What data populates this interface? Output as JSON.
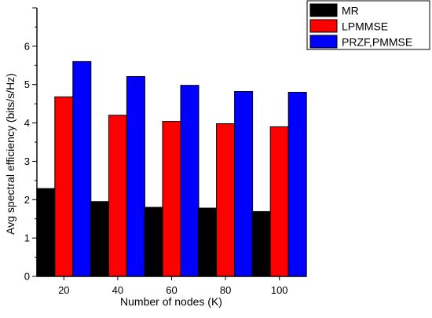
{
  "chart_data": {
    "type": "bar",
    "xlabel": "Number of nodes (K)",
    "ylabel": "Avg spectral efficiency (bits/s/Hz)",
    "categories": [
      "20",
      "40",
      "60",
      "80",
      "100"
    ],
    "ylim": [
      0,
      7
    ],
    "yticks": [
      0,
      1,
      2,
      3,
      4,
      5,
      6
    ],
    "grid": false,
    "legend_position": "top-right",
    "series": [
      {
        "name": "MR",
        "color": "#000000",
        "values": [
          2.29,
          1.95,
          1.8,
          1.78,
          1.69
        ]
      },
      {
        "name": "LPMMSE",
        "color": "#ff0000",
        "values": [
          4.68,
          4.2,
          4.04,
          3.98,
          3.9
        ]
      },
      {
        "name": "PRZF,PMMSE",
        "color": "#0000ff",
        "values": [
          5.6,
          5.21,
          4.98,
          4.82,
          4.8
        ]
      }
    ]
  }
}
